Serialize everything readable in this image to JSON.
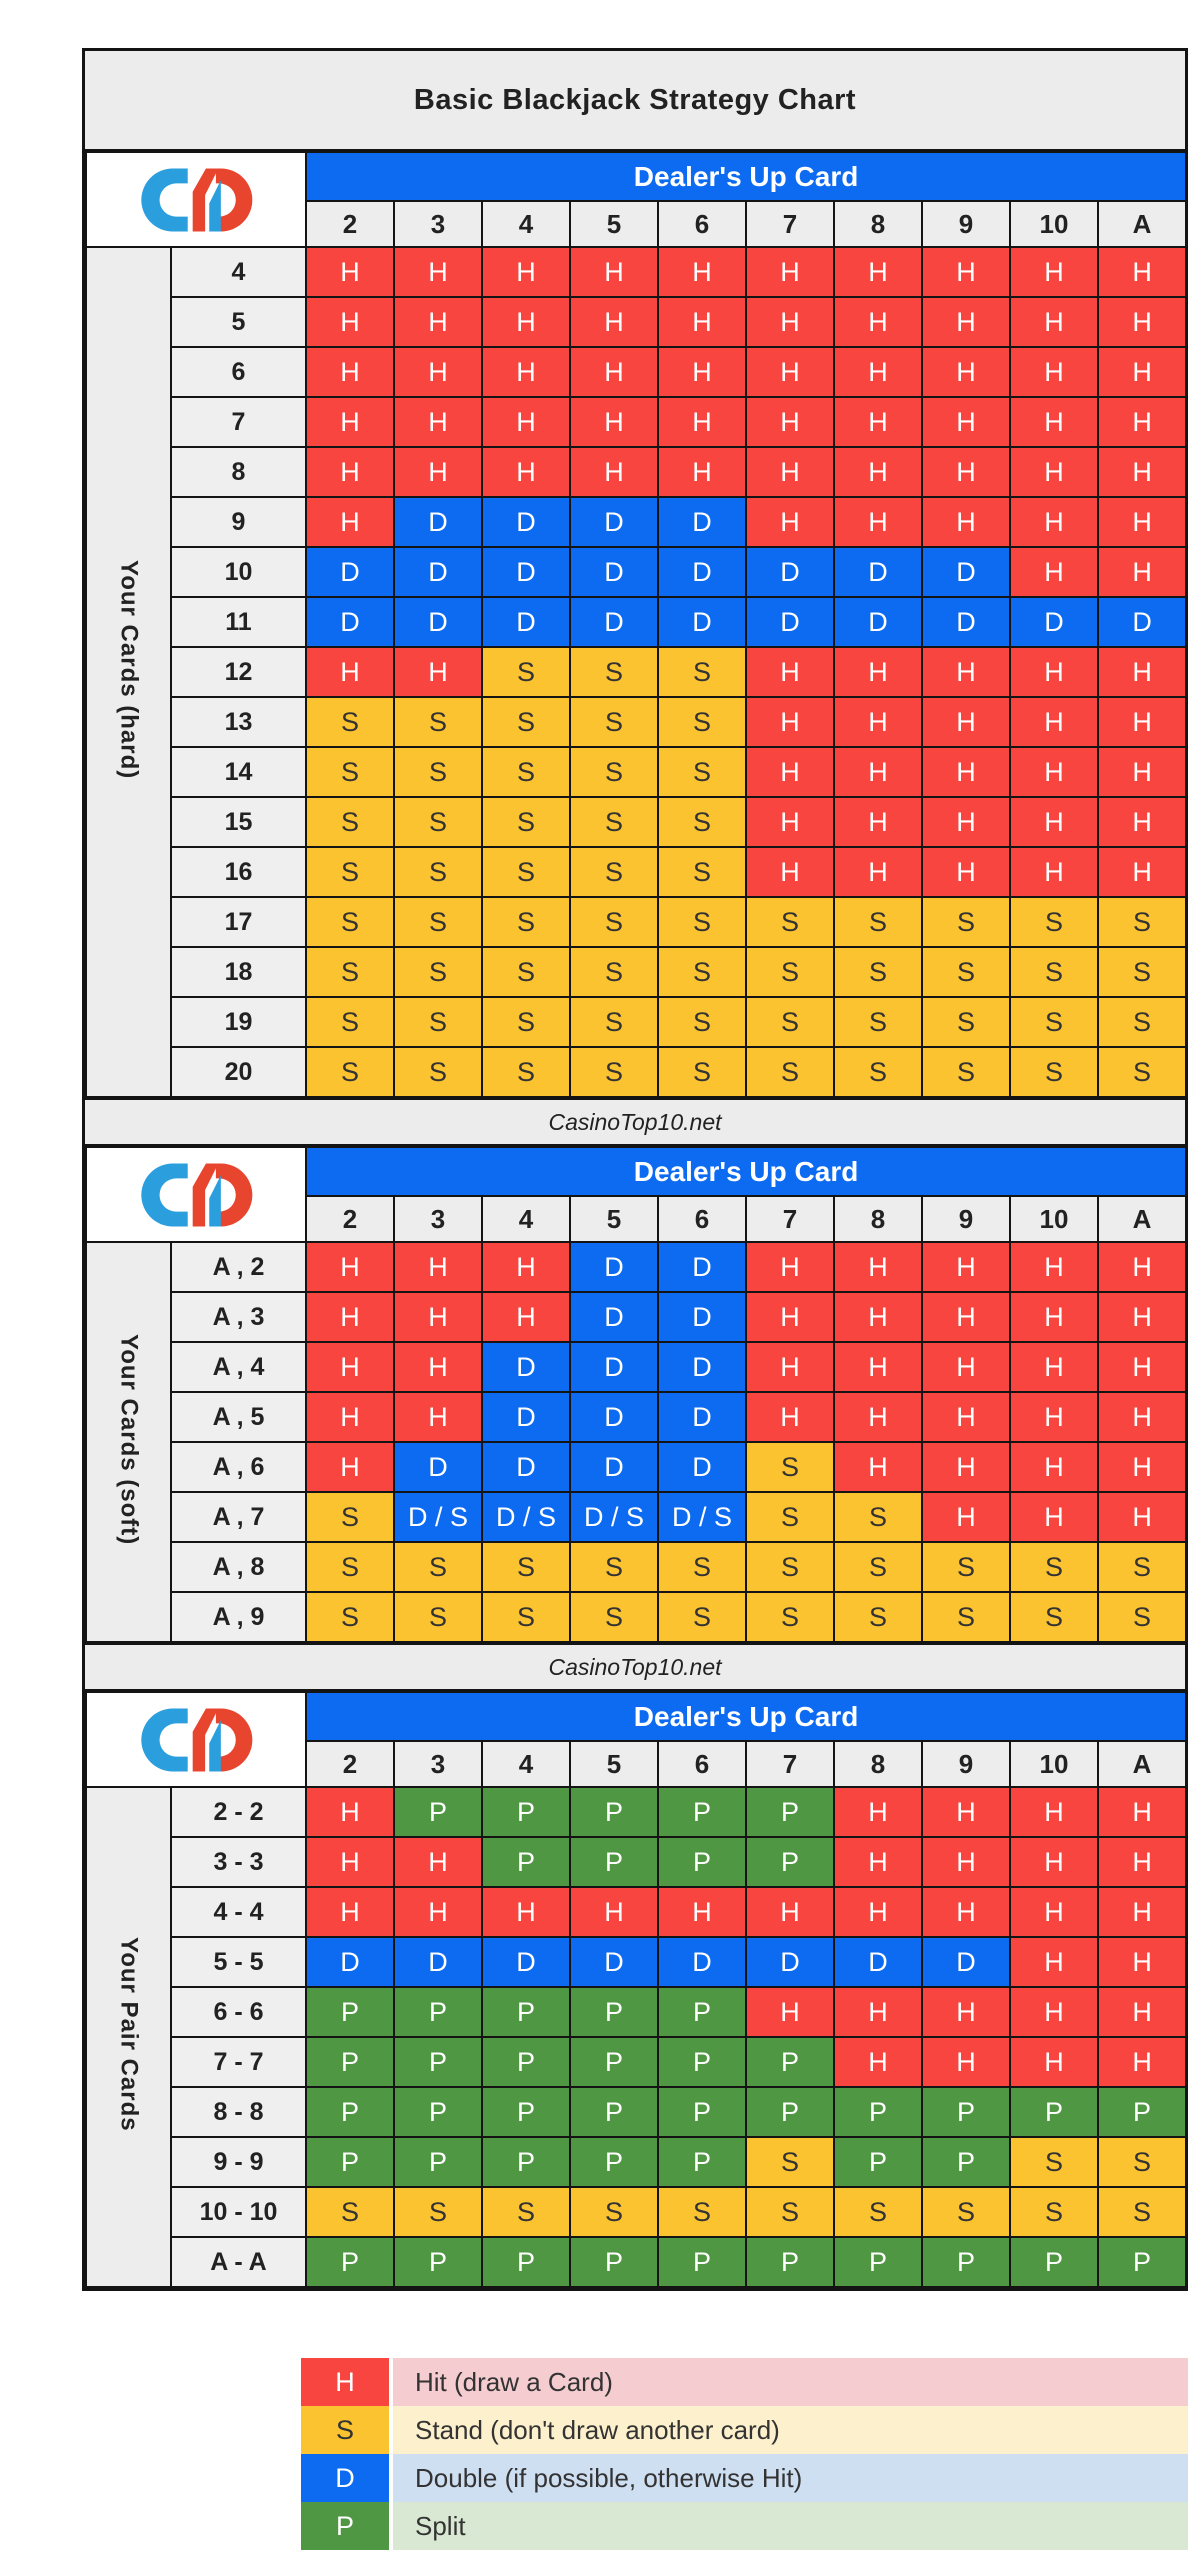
{
  "title": "Basic Blackjack Strategy Chart",
  "site_label": "CasinoTop10.net",
  "dealer_header": "Dealer's Up Card",
  "colors": {
    "dealer_bar": "#0d6bf2",
    "grid_border": "#141414",
    "header_bg": "#ededed",
    "title_bg": "#ececec",
    "actions": {
      "H": {
        "cell": "#f94540",
        "text": "#ffffff",
        "legend_bg": "#f5cdd0"
      },
      "S": {
        "cell": "#fcc330",
        "text": "#333333",
        "legend_bg": "#fdf0cc"
      },
      "D": {
        "cell": "#0d6bf2",
        "text": "#ffffff",
        "legend_bg": "#cfdff2"
      },
      "P": {
        "cell": "#4f9743",
        "text": "#ffffff",
        "legend_bg": "#d8e8d2"
      }
    },
    "logo_blue": "#2b9fdd",
    "logo_red": "#e8452f"
  },
  "chart_data": {
    "type": "table",
    "title": "Basic Blackjack Strategy Chart",
    "columns": [
      "2",
      "3",
      "4",
      "5",
      "6",
      "7",
      "8",
      "9",
      "10",
      "A"
    ],
    "legend_position": "bottom",
    "tables": [
      {
        "id": "hard",
        "group_label": "Your Cards (hard)",
        "rows": [
          {
            "label": "4",
            "cells": [
              "H",
              "H",
              "H",
              "H",
              "H",
              "H",
              "H",
              "H",
              "H",
              "H"
            ]
          },
          {
            "label": "5",
            "cells": [
              "H",
              "H",
              "H",
              "H",
              "H",
              "H",
              "H",
              "H",
              "H",
              "H"
            ]
          },
          {
            "label": "6",
            "cells": [
              "H",
              "H",
              "H",
              "H",
              "H",
              "H",
              "H",
              "H",
              "H",
              "H"
            ]
          },
          {
            "label": "7",
            "cells": [
              "H",
              "H",
              "H",
              "H",
              "H",
              "H",
              "H",
              "H",
              "H",
              "H"
            ]
          },
          {
            "label": "8",
            "cells": [
              "H",
              "H",
              "H",
              "H",
              "H",
              "H",
              "H",
              "H",
              "H",
              "H"
            ]
          },
          {
            "label": "9",
            "cells": [
              "H",
              "D",
              "D",
              "D",
              "D",
              "H",
              "H",
              "H",
              "H",
              "H"
            ]
          },
          {
            "label": "10",
            "cells": [
              "D",
              "D",
              "D",
              "D",
              "D",
              "D",
              "D",
              "D",
              "H",
              "H"
            ]
          },
          {
            "label": "11",
            "cells": [
              "D",
              "D",
              "D",
              "D",
              "D",
              "D",
              "D",
              "D",
              "D",
              "D"
            ]
          },
          {
            "label": "12",
            "cells": [
              "H",
              "H",
              "S",
              "S",
              "S",
              "H",
              "H",
              "H",
              "H",
              "H"
            ]
          },
          {
            "label": "13",
            "cells": [
              "S",
              "S",
              "S",
              "S",
              "S",
              "H",
              "H",
              "H",
              "H",
              "H"
            ]
          },
          {
            "label": "14",
            "cells": [
              "S",
              "S",
              "S",
              "S",
              "S",
              "H",
              "H",
              "H",
              "H",
              "H"
            ]
          },
          {
            "label": "15",
            "cells": [
              "S",
              "S",
              "S",
              "S",
              "S",
              "H",
              "H",
              "H",
              "H",
              "H"
            ]
          },
          {
            "label": "16",
            "cells": [
              "S",
              "S",
              "S",
              "S",
              "S",
              "H",
              "H",
              "H",
              "H",
              "H"
            ]
          },
          {
            "label": "17",
            "cells": [
              "S",
              "S",
              "S",
              "S",
              "S",
              "S",
              "S",
              "S",
              "S",
              "S"
            ]
          },
          {
            "label": "18",
            "cells": [
              "S",
              "S",
              "S",
              "S",
              "S",
              "S",
              "S",
              "S",
              "S",
              "S"
            ]
          },
          {
            "label": "19",
            "cells": [
              "S",
              "S",
              "S",
              "S",
              "S",
              "S",
              "S",
              "S",
              "S",
              "S"
            ]
          },
          {
            "label": "20",
            "cells": [
              "S",
              "S",
              "S",
              "S",
              "S",
              "S",
              "S",
              "S",
              "S",
              "S"
            ]
          }
        ]
      },
      {
        "id": "soft",
        "group_label": "Your Cards (soft)",
        "rows": [
          {
            "label": "A , 2",
            "cells": [
              "H",
              "H",
              "H",
              "D",
              "D",
              "H",
              "H",
              "H",
              "H",
              "H"
            ]
          },
          {
            "label": "A , 3",
            "cells": [
              "H",
              "H",
              "H",
              "D",
              "D",
              "H",
              "H",
              "H",
              "H",
              "H"
            ]
          },
          {
            "label": "A , 4",
            "cells": [
              "H",
              "H",
              "D",
              "D",
              "D",
              "H",
              "H",
              "H",
              "H",
              "H"
            ]
          },
          {
            "label": "A , 5",
            "cells": [
              "H",
              "H",
              "D",
              "D",
              "D",
              "H",
              "H",
              "H",
              "H",
              "H"
            ]
          },
          {
            "label": "A , 6",
            "cells": [
              "H",
              "D",
              "D",
              "D",
              "D",
              "S",
              "H",
              "H",
              "H",
              "H"
            ]
          },
          {
            "label": "A , 7",
            "cells": [
              "S",
              "D / S",
              "D / S",
              "D / S",
              "D / S",
              "S",
              "S",
              "H",
              "H",
              "H"
            ]
          },
          {
            "label": "A , 8",
            "cells": [
              "S",
              "S",
              "S",
              "S",
              "S",
              "S",
              "S",
              "S",
              "S",
              "S"
            ]
          },
          {
            "label": "A , 9",
            "cells": [
              "S",
              "S",
              "S",
              "S",
              "S",
              "S",
              "S",
              "S",
              "S",
              "S"
            ]
          }
        ]
      },
      {
        "id": "pairs",
        "group_label": "Your Pair Cards",
        "rows": [
          {
            "label": "2 - 2",
            "cells": [
              "H",
              "P",
              "P",
              "P",
              "P",
              "P",
              "H",
              "H",
              "H",
              "H"
            ]
          },
          {
            "label": "3 - 3",
            "cells": [
              "H",
              "H",
              "P",
              "P",
              "P",
              "P",
              "H",
              "H",
              "H",
              "H"
            ]
          },
          {
            "label": "4 - 4",
            "cells": [
              "H",
              "H",
              "H",
              "H",
              "H",
              "H",
              "H",
              "H",
              "H",
              "H"
            ]
          },
          {
            "label": "5 - 5",
            "cells": [
              "D",
              "D",
              "D",
              "D",
              "D",
              "D",
              "D",
              "D",
              "H",
              "H"
            ]
          },
          {
            "label": "6 - 6",
            "cells": [
              "P",
              "P",
              "P",
              "P",
              "P",
              "H",
              "H",
              "H",
              "H",
              "H"
            ]
          },
          {
            "label": "7 - 7",
            "cells": [
              "P",
              "P",
              "P",
              "P",
              "P",
              "P",
              "H",
              "H",
              "H",
              "H"
            ]
          },
          {
            "label": "8 - 8",
            "cells": [
              "P",
              "P",
              "P",
              "P",
              "P",
              "P",
              "P",
              "P",
              "P",
              "P"
            ]
          },
          {
            "label": "9 - 9",
            "cells": [
              "P",
              "P",
              "P",
              "P",
              "P",
              "S",
              "P",
              "P",
              "S",
              "S"
            ]
          },
          {
            "label": "10 - 10",
            "cells": [
              "S",
              "S",
              "S",
              "S",
              "S",
              "S",
              "S",
              "S",
              "S",
              "S"
            ]
          },
          {
            "label": "A - A",
            "cells": [
              "P",
              "P",
              "P",
              "P",
              "P",
              "P",
              "P",
              "P",
              "P",
              "P"
            ]
          }
        ]
      }
    ]
  },
  "legend": [
    {
      "key": "H",
      "label": "Hit (draw a Card)"
    },
    {
      "key": "S",
      "label": "Stand (don't draw another card)"
    },
    {
      "key": "D",
      "label": "Double (if possible, otherwise Hit)"
    },
    {
      "key": "P",
      "label": "Split"
    }
  ],
  "logo_name": "CasinoTop10 logo"
}
